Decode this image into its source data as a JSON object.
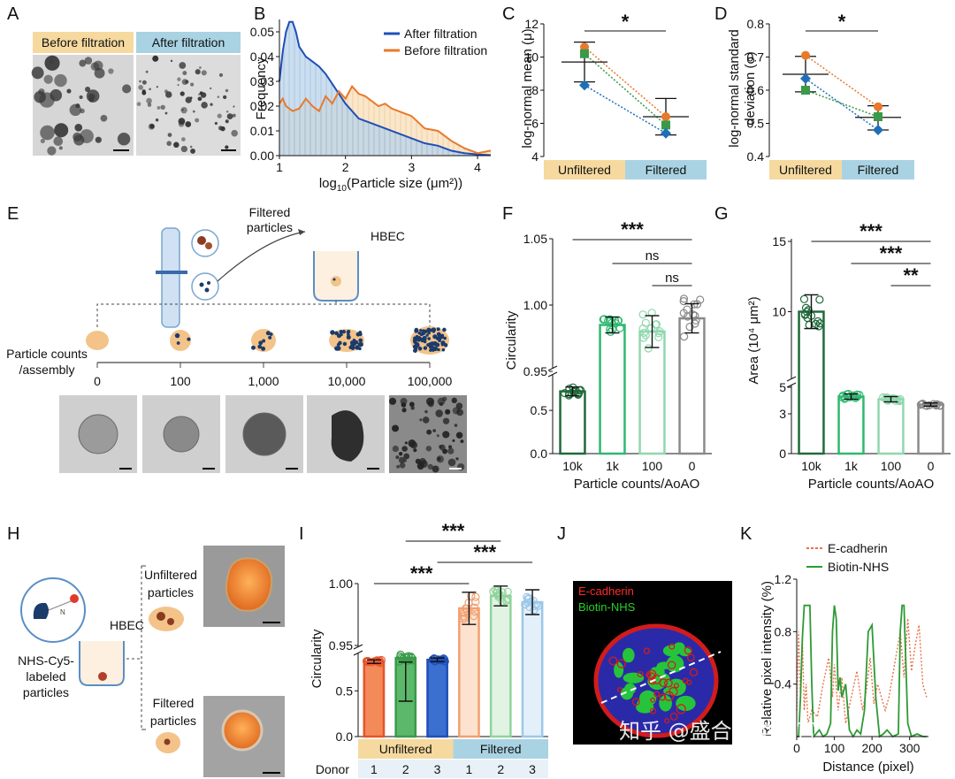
{
  "panels": {
    "A": {
      "label": "A",
      "tags": [
        "Before filtration",
        "After filtration"
      ]
    },
    "E": {
      "label": "E",
      "filtered_particles": "Filtered particles",
      "hbec": "HBEC",
      "axis_label": "Particle counts /assembly",
      "counts": [
        "0",
        "100",
        "1,000",
        "10,000",
        "100,000"
      ]
    },
    "H": {
      "label": "H",
      "hbec": "HBEC",
      "nhs_label": "NHS-Cy5- labeled particles",
      "unfiltered": "Unfiltered particles",
      "filtered": "Filtered particles"
    },
    "J": {
      "label": "J",
      "legend": [
        "E-cadherin",
        "Biotin-NHS"
      ]
    }
  },
  "watermark": "知乎 @盛合瑞类器官",
  "colors": {
    "blue": "#1f4fb8",
    "orange": "#e8792b",
    "green": "#3a9a4a",
    "tan": "#f5d99a",
    "lightblue": "#a9d3e3"
  },
  "chart_data": [
    {
      "id": "B",
      "label": "B",
      "type": "area",
      "xlabel": "log10(Particle size (μm²))",
      "ylabel": "Frequency",
      "xlim": [
        1,
        4.2
      ],
      "ylim": [
        0,
        0.055
      ],
      "xticks": [
        "1",
        "2",
        "3",
        "4"
      ],
      "yticks": [
        "0.00",
        "0.01",
        "0.02",
        "0.03",
        "0.04",
        "0.05"
      ],
      "legend_position": "top-right",
      "series": [
        {
          "name": "After filtration",
          "color": "#1f4fb8",
          "x": [
            1,
            1.05,
            1.1,
            1.15,
            1.2,
            1.25,
            1.3,
            1.4,
            1.5,
            1.6,
            1.7,
            1.8,
            1.9,
            2.0,
            2.2,
            2.4,
            2.6,
            2.8,
            3.0,
            3.2,
            3.4,
            3.6,
            3.8,
            4.0,
            4.2
          ],
          "y": [
            0.03,
            0.042,
            0.05,
            0.054,
            0.054,
            0.05,
            0.044,
            0.04,
            0.038,
            0.036,
            0.033,
            0.029,
            0.025,
            0.021,
            0.015,
            0.013,
            0.011,
            0.009,
            0.007,
            0.005,
            0.004,
            0.002,
            0.001,
            0.0005,
            0.0002
          ]
        },
        {
          "name": "Before filtration",
          "color": "#e8792b",
          "x": [
            1,
            1.05,
            1.1,
            1.2,
            1.3,
            1.4,
            1.5,
            1.6,
            1.7,
            1.8,
            1.9,
            2.0,
            2.1,
            2.2,
            2.3,
            2.4,
            2.5,
            2.6,
            2.7,
            2.8,
            2.9,
            3.0,
            3.2,
            3.4,
            3.6,
            3.8,
            4.0,
            4.2
          ],
          "y": [
            0.021,
            0.023,
            0.02,
            0.018,
            0.019,
            0.023,
            0.02,
            0.018,
            0.024,
            0.021,
            0.026,
            0.023,
            0.028,
            0.025,
            0.024,
            0.022,
            0.02,
            0.021,
            0.019,
            0.018,
            0.017,
            0.016,
            0.011,
            0.01,
            0.006,
            0.003,
            0.001,
            0.002
          ]
        }
      ]
    },
    {
      "id": "C",
      "label": "C",
      "type": "scatter",
      "ylabel": "log-normal mean (μ)",
      "ylim": [
        4,
        12
      ],
      "yticks": [
        "4",
        "6",
        "8",
        "10",
        "12"
      ],
      "categories": [
        "Unfiltered",
        "Filtered"
      ],
      "mean": [
        9.7,
        6.4
      ],
      "sd": [
        [
          8.5,
          10.9
        ],
        [
          5.3,
          7.5
        ]
      ],
      "donors": [
        {
          "color": "#e8792b",
          "values": [
            10.6,
            6.4
          ]
        },
        {
          "color": "#3a9a4a",
          "values": [
            10.2,
            5.9
          ]
        },
        {
          "color": "#1f6fb8",
          "values": [
            8.3,
            5.4
          ]
        }
      ],
      "significance": "*"
    },
    {
      "id": "D",
      "label": "D",
      "type": "scatter",
      "ylabel": "log-normal standard deviation (σ)",
      "ylim": [
        0.4,
        0.8
      ],
      "yticks": [
        "0.4",
        "0.5",
        "0.6",
        "0.7",
        "0.8"
      ],
      "categories": [
        "Unfiltered",
        "Filtered"
      ],
      "mean": [
        0.648,
        0.518
      ],
      "sd": [
        [
          0.595,
          0.702
        ],
        [
          0.48,
          0.553
        ]
      ],
      "donors": [
        {
          "color": "#e8792b",
          "values": [
            0.705,
            0.55
          ]
        },
        {
          "color": "#3a9a4a",
          "values": [
            0.6,
            0.52
          ]
        },
        {
          "color": "#1f6fb8",
          "values": [
            0.635,
            0.48
          ]
        }
      ],
      "significance": "*"
    },
    {
      "id": "F",
      "label": "F",
      "type": "bar",
      "xlabel": "Particle counts/AoAO",
      "ylabel": "Circularity",
      "categories": [
        "10k",
        "1k",
        "100",
        "0"
      ],
      "values": [
        0.72,
        0.985,
        0.98,
        0.99
      ],
      "yticks": [
        "0.0",
        "0.5",
        "0.95",
        "1.00",
        "1.05"
      ],
      "significance": [
        {
          "from": 0,
          "to": 3,
          "text": "***"
        },
        {
          "from": 1,
          "to": 3,
          "text": "ns"
        },
        {
          "from": 2,
          "to": 3,
          "text": "ns"
        }
      ]
    },
    {
      "id": "G",
      "label": "G",
      "type": "bar",
      "xlabel": "Particle counts/AoAO",
      "ylabel": "Area (10⁴ μm²)",
      "categories": [
        "10k",
        "1k",
        "100",
        "0"
      ],
      "values": [
        10.0,
        4.3,
        4.1,
        3.7
      ],
      "yticks": [
        "0",
        "3",
        "5",
        "10",
        "15"
      ],
      "significance": [
        {
          "from": 0,
          "to": 3,
          "text": "***"
        },
        {
          "from": 1,
          "to": 3,
          "text": "***"
        },
        {
          "from": 2,
          "to": 3,
          "text": "**"
        }
      ]
    },
    {
      "id": "I",
      "label": "I",
      "type": "bar",
      "ylabel": "Circularity",
      "groups": [
        "Unfiltered",
        "Filtered"
      ],
      "donor_label": "Donor",
      "categories": [
        "1",
        "2",
        "3",
        "1",
        "2",
        "3"
      ],
      "values": [
        0.82,
        0.86,
        0.84,
        0.98,
        0.99,
        0.985
      ],
      "yticks": [
        "0.0",
        "0.5",
        "0.95",
        "1.00"
      ],
      "significance": [
        {
          "text": "***"
        },
        {
          "text": "***"
        },
        {
          "text": "***"
        }
      ]
    },
    {
      "id": "K",
      "label": "K",
      "type": "line",
      "xlabel": "Distance (pixel)",
      "ylabel": "Relative pixel intensity (%)",
      "xticks": [
        "0",
        "100",
        "200",
        "300"
      ],
      "yticks": [
        "0.4",
        "0.8",
        "1.2"
      ],
      "ylim": [
        0,
        1.2
      ],
      "xlim": [
        0,
        350
      ],
      "series": [
        {
          "name": "E-cadherin",
          "color": "#e8734a",
          "dashed": true,
          "x": [
            0,
            5,
            10,
            15,
            20,
            25,
            30,
            40,
            55,
            70,
            85,
            95,
            100,
            110,
            120,
            130,
            145,
            160,
            175,
            185,
            195,
            205,
            215,
            225,
            235,
            245,
            260,
            275,
            285,
            295,
            305,
            315,
            325,
            335,
            345
          ],
          "y": [
            0.2,
            0.8,
            0.3,
            0.75,
            0.2,
            0.4,
            0.1,
            0.2,
            0.15,
            0.4,
            0.6,
            0.3,
            0.55,
            0.2,
            0.45,
            0.1,
            0.3,
            0.5,
            0.2,
            0.35,
            0.6,
            0.25,
            0.4,
            0.3,
            0.2,
            0.3,
            0.55,
            0.8,
            0.45,
            0.9,
            0.5,
            0.7,
            0.85,
            0.4,
            0.3
          ]
        },
        {
          "name": "Biotin-NHS",
          "color": "#2e9a35",
          "dashed": false,
          "x": [
            0,
            5,
            10,
            15,
            20,
            25,
            35,
            40,
            45,
            60,
            70,
            80,
            90,
            95,
            100,
            105,
            110,
            115,
            120,
            130,
            140,
            150,
            160,
            170,
            180,
            190,
            200,
            210,
            220,
            230,
            240,
            255,
            270,
            275,
            280,
            285,
            295,
            305,
            320,
            335,
            345
          ],
          "y": [
            0,
            0,
            0.3,
            0.75,
            1.0,
            1.0,
            1.0,
            0.4,
            0,
            0.05,
            0,
            0.02,
            0.1,
            0.8,
            1.0,
            0.9,
            0.35,
            0.45,
            0.3,
            0.4,
            0.05,
            0,
            0.05,
            0.02,
            0.2,
            0.8,
            0.85,
            0.3,
            0,
            0.02,
            0.05,
            0,
            0.02,
            0.8,
            1.0,
            1.0,
            0.1,
            0,
            0.02,
            0,
            0
          ]
        }
      ]
    }
  ]
}
